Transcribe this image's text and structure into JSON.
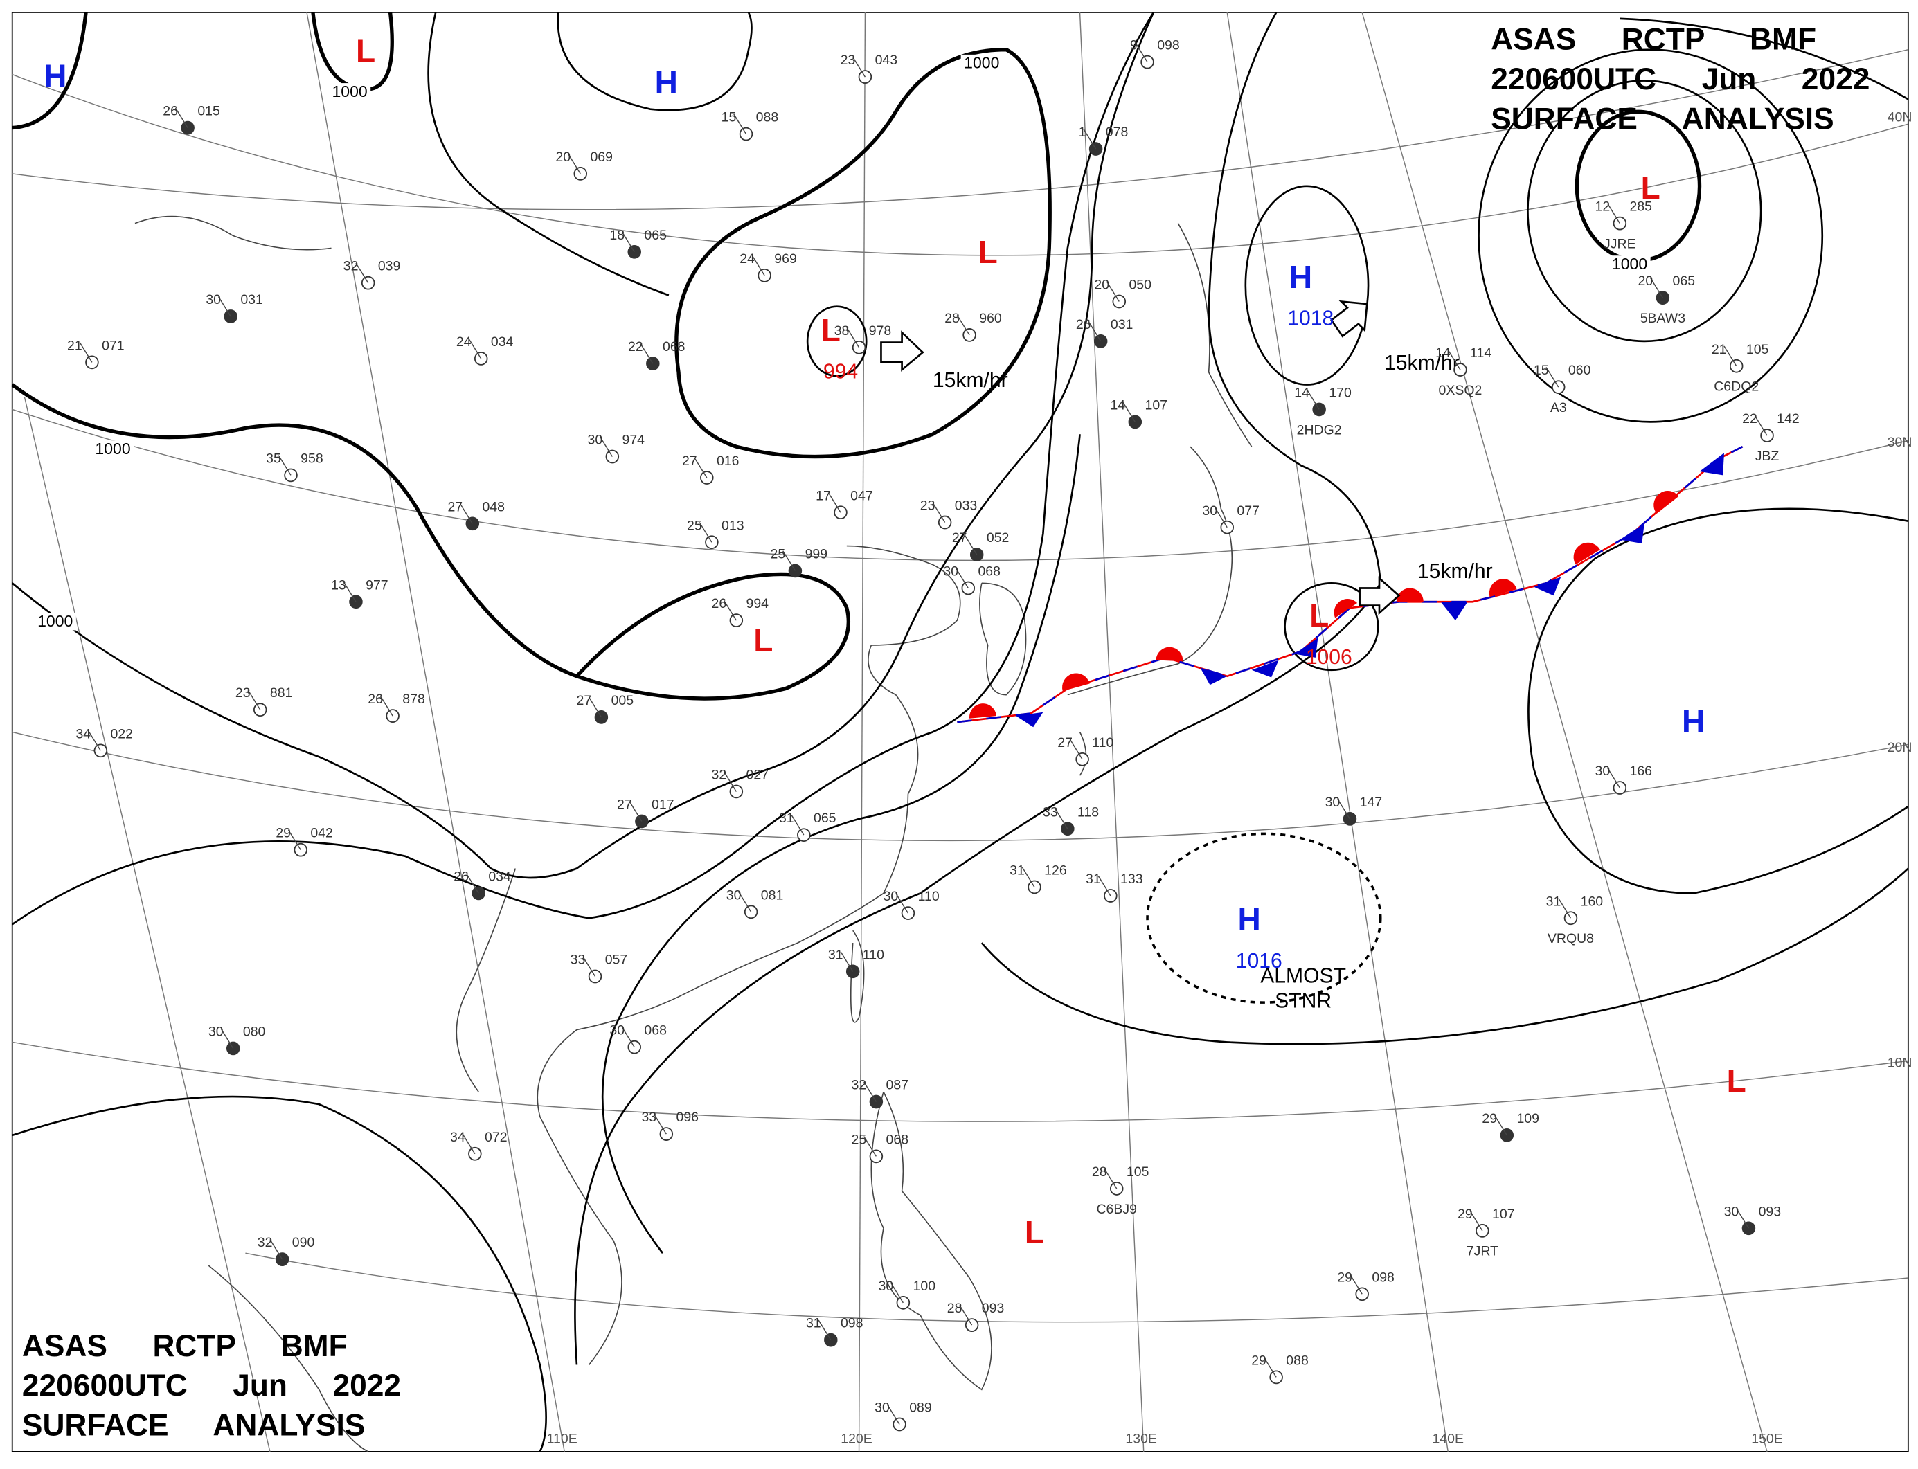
{
  "header": {
    "lines": [
      "ASAS RCTP BMF",
      "220600UTC Jun 2022",
      "SURFACE ANALYSIS"
    ]
  },
  "systems": [
    {
      "type": "H"
    },
    {
      "type": "L"
    },
    {
      "type": "H"
    },
    {
      "type": "L",
      "pressure": "994"
    },
    {
      "type": "L"
    },
    {
      "type": "H",
      "pressure": "1018"
    },
    {
      "type": "L"
    },
    {
      "type": "L"
    },
    {
      "type": "L",
      "pressure": "1006"
    },
    {
      "type": "H"
    },
    {
      "type": "H",
      "pressure": "1016"
    },
    {
      "type": "L"
    },
    {
      "type": "L"
    }
  ],
  "isobar_labels": [
    "1000",
    "1000",
    "1000",
    "1000",
    "1000"
  ],
  "motions": [
    "15km/hr",
    "15km/hr",
    "15km/hr"
  ],
  "stationary_note": [
    "ALMOST",
    "STNR"
  ],
  "latitude_labels": [
    "40N",
    "30N",
    "20N",
    "10N"
  ],
  "longitude_labels": [
    "110E",
    "120E",
    "130E",
    "140E",
    "150E"
  ],
  "stations": [
    {
      "temp": "26",
      "pressure": "015"
    },
    {
      "temp": "15",
      "pressure": "088"
    },
    {
      "temp": "20",
      "pressure": "069"
    },
    {
      "temp": "18",
      "pressure": "065"
    },
    {
      "temp": "24",
      "pressure": "969"
    },
    {
      "temp": "32",
      "pressure": "039"
    },
    {
      "temp": "30",
      "pressure": "031"
    },
    {
      "temp": "21",
      "pressure": "071"
    },
    {
      "temp": "24",
      "pressure": "034"
    },
    {
      "temp": "22",
      "pressure": "068"
    },
    {
      "temp": "30",
      "pressure": "974"
    },
    {
      "temp": "35",
      "pressure": "958"
    },
    {
      "temp": "27",
      "pressure": "048"
    },
    {
      "temp": "27",
      "pressure": "016"
    },
    {
      "temp": "25",
      "pressure": "013"
    },
    {
      "temp": "25",
      "pressure": "999"
    },
    {
      "temp": "17",
      "pressure": "047"
    },
    {
      "temp": "23",
      "pressure": "033"
    },
    {
      "temp": "27",
      "pressure": "052"
    },
    {
      "temp": "30",
      "pressure": "068"
    },
    {
      "temp": "26",
      "pressure": "994"
    },
    {
      "temp": "13",
      "pressure": "977"
    },
    {
      "temp": "23",
      "pressure": "881"
    },
    {
      "temp": "26",
      "pressure": "878"
    },
    {
      "temp": "27",
      "pressure": "005"
    },
    {
      "temp": "34",
      "pressure": "022"
    },
    {
      "temp": "32",
      "pressure": "027"
    },
    {
      "temp": "27",
      "pressure": "017"
    },
    {
      "temp": "29",
      "pressure": "042"
    },
    {
      "temp": "31",
      "pressure": "065"
    },
    {
      "temp": "26",
      "pressure": "034"
    },
    {
      "temp": "30",
      "pressure": "081"
    },
    {
      "temp": "30",
      "pressure": "110"
    },
    {
      "temp": "31",
      "pressure": "110"
    },
    {
      "temp": "31",
      "pressure": "126"
    },
    {
      "temp": "31",
      "pressure": "133"
    },
    {
      "temp": "33",
      "pressure": "118"
    },
    {
      "temp": "33",
      "pressure": "057"
    },
    {
      "temp": "30",
      "pressure": "068"
    },
    {
      "temp": "30",
      "pressure": "080"
    },
    {
      "temp": "34",
      "pressure": "072"
    },
    {
      "temp": "33",
      "pressure": "096"
    },
    {
      "temp": "32",
      "pressure": "087"
    },
    {
      "temp": "25",
      "pressure": "068"
    },
    {
      "temp": "30",
      "pressure": "100"
    },
    {
      "temp": "31",
      "pressure": "098"
    },
    {
      "temp": "28",
      "pressure": "093"
    },
    {
      "temp": "30",
      "pressure": "089"
    },
    {
      "temp": "32",
      "pressure": "090"
    },
    {
      "temp": "28",
      "pressure": "105",
      "id": "C6BJ9"
    },
    {
      "temp": "29",
      "pressure": "107",
      "id": "7JRT"
    },
    {
      "temp": "29",
      "pressure": "109"
    },
    {
      "temp": "29",
      "pressure": "098"
    },
    {
      "temp": "29",
      "pressure": "088"
    },
    {
      "temp": "30",
      "pressure": "093"
    },
    {
      "temp": "31",
      "pressure": "160",
      "id": "VRQU8"
    },
    {
      "temp": "30",
      "pressure": "166"
    },
    {
      "temp": "30",
      "pressure": "147"
    },
    {
      "temp": "27",
      "pressure": "110"
    },
    {
      "temp": "20",
      "pressure": "050"
    },
    {
      "temp": "26",
      "pressure": "031"
    },
    {
      "temp": "9",
      "pressure": "098"
    },
    {
      "temp": "23",
      "pressure": "043"
    },
    {
      "temp": "1",
      "pressure": "078"
    },
    {
      "temp": "28",
      "pressure": "960"
    },
    {
      "temp": "38",
      "pressure": "978"
    },
    {
      "temp": "14",
      "pressure": "107"
    },
    {
      "temp": "30",
      "pressure": "077"
    },
    {
      "temp": "15",
      "pressure": "060",
      "id": "A3"
    },
    {
      "temp": "20",
      "pressure": "065",
      "id": "5BAW3"
    },
    {
      "temp": "22",
      "pressure": "142",
      "id": "JBZ"
    },
    {
      "temp": "14",
      "pressure": "114",
      "id": "0XSQ2"
    },
    {
      "temp": "14",
      "pressure": "170",
      "id": "2HDG2"
    },
    {
      "temp": "21",
      "pressure": "105",
      "id": "C6DQ2"
    },
    {
      "temp": "12",
      "pressure": "285",
      "id": "JJRE"
    }
  ]
}
